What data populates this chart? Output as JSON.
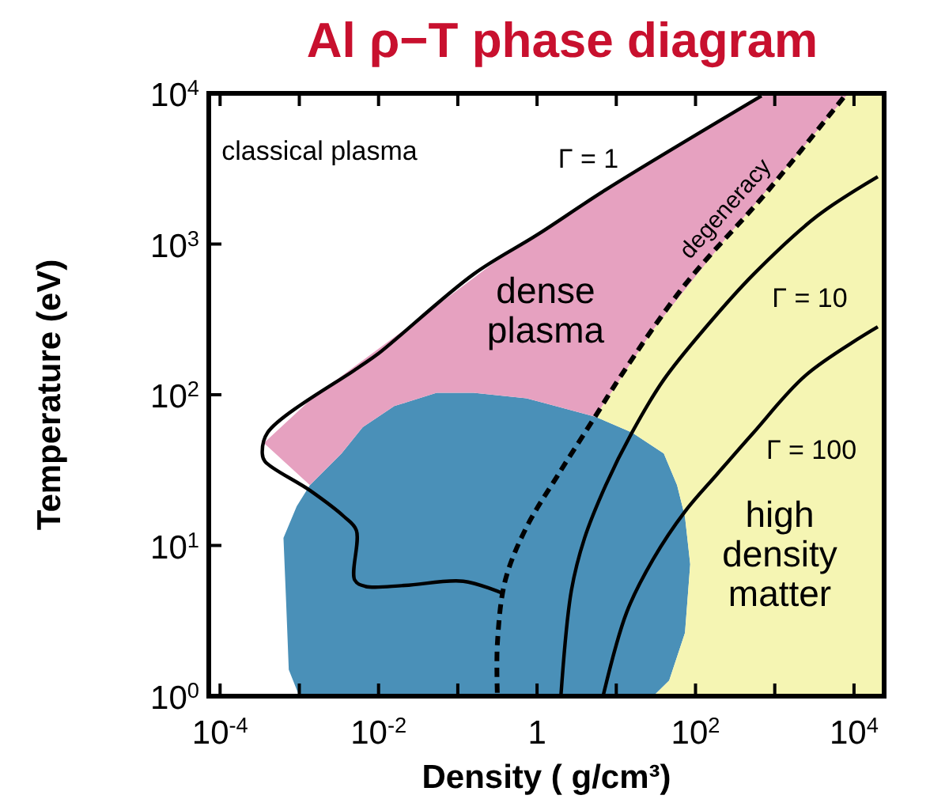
{
  "chart_data": {
    "type": "line",
    "title": "Al ρ−T phase diagram",
    "xlabel": "Density ( g/cm³)",
    "ylabel": "Temperature (eV)",
    "log": "xy",
    "xlim": [
      7.2e-05,
      24000
    ],
    "ylim": [
      1,
      10000
    ],
    "xticks": [
      {
        "value": 0.0001,
        "label": "10$^{-4}$"
      },
      {
        "value": 0.001,
        "label": null
      },
      {
        "value": 0.01,
        "label": "10$^{-2}$"
      },
      {
        "value": 0.1,
        "label": null
      },
      {
        "value": 1,
        "label": "1"
      },
      {
        "value": 10,
        "label": null
      },
      {
        "value": 100,
        "label": "10$^{2}$"
      },
      {
        "value": 1000,
        "label": null
      },
      {
        "value": 10000,
        "label": "10$^{4}$"
      }
    ],
    "yticks": [
      {
        "value": 1,
        "label": "10$^{0}$"
      },
      {
        "value": 10,
        "label": "10$^{1}$"
      },
      {
        "value": 100,
        "label": "10$^{2}$"
      },
      {
        "value": 1000,
        "label": "10$^{3}$"
      },
      {
        "value": 10000,
        "label": "10$^{4}$"
      }
    ],
    "series": [
      {
        "type": "area",
        "color": "#4a90b8",
        "x": [
          0.000681,
          0.000631,
          0.000927,
          0.00136,
          0.00341,
          0.00631,
          0.0158,
          0.0541,
          0.158,
          0.736,
          5.41,
          15.8,
          39.8,
          58.5,
          73.6,
          85.7,
          73.6,
          46.5,
          29.3,
          0.001,
          0.000736
        ],
        "values": [
          4.27,
          11.2,
          18.2,
          25.1,
          40.7,
          61,
          84.1,
          103,
          103,
          94.8,
          71.6,
          56.2,
          40.7,
          25.1,
          15.5,
          7.5,
          2.63,
          1.27,
          1,
          1,
          1.5
        ]
      },
      {
        "type": "area",
        "color": "#f5f5b3",
        "x": [
          8500,
          2330,
          233,
          29.3,
          5.41,
          15.8,
          39.8,
          58.5,
          73.6,
          85.7,
          73.6,
          46.5,
          29.3,
          24000,
          24000
        ],
        "values": [
          10000,
          4430,
          1064,
          271,
          71.6,
          56.2,
          40.7,
          25.1,
          15.5,
          7.5,
          2.63,
          1.27,
          1,
          1,
          10000
        ]
      },
      {
        "type": "area",
        "color": "#e6a1c0",
        "x": [
          800,
          73.6,
          0.398,
          0.0398,
          0.00158,
          0.000357,
          0.00136,
          0.00341,
          0.00631,
          0.0158,
          0.0541,
          0.158,
          0.736,
          5.41,
          29.3,
          233,
          2330,
          8500
        ],
        "values": [
          10000,
          4730,
          857,
          345,
          98.8,
          47.9,
          25.1,
          40.7,
          61,
          84.1,
          103,
          103,
          94.8,
          71.6,
          271,
          1064,
          4430,
          10000
        ]
      },
      {
        "color": "#000000",
        "x": [
          681,
          7.36,
          1.0,
          0.158,
          0.01,
          0.0054,
          0.000398,
          0.000341,
          0.000369,
          0.00136,
          0.00369,
          0.00525,
          0.00501,
          0.00681,
          0.0215,
          0.117,
          0.369
        ],
        "values": [
          9620,
          2290,
          1150,
          631,
          188,
          150,
          56.2,
          40.7,
          36.1,
          23.2,
          15.5,
          12.6,
          5.89,
          5.35,
          5.43,
          5.79,
          4.81
        ]
      },
      {
        "name": "degeneracy",
        "color": "#000000",
        "line_style": "dashed",
        "x": [
          7360,
          736,
          73.6,
          11.7,
          5.41,
          1.85,
          0.736,
          0.398,
          0.316,
          0.316
        ],
        "values": [
          9380,
          2110,
          537,
          136,
          71.6,
          29.5,
          13.2,
          5.89,
          2.24,
          1
        ]
      },
      {
        "color": "#000000",
        "x": [
          19950,
          3410,
          541,
          136,
          39.8,
          15.8,
          7.36,
          3.98,
          2.71,
          2.0
        ],
        "values": [
          2800,
          1530,
          631,
          282,
          126,
          56.2,
          25.1,
          11.2,
          5.01,
          1
        ]
      },
      {
        "color": "#000000",
        "x": [
          19950,
          2510,
          541,
          185,
          73.6,
          29.3,
          13.6,
          6.81
        ],
        "values": [
          282,
          136,
          56.2,
          29.5,
          16.8,
          8.13,
          3.63,
          1
        ]
      }
    ],
    "annotations": [
      "classical plasma",
      "Γ = 1",
      "dense\nplasma",
      "Γ = 10",
      "Γ = 100",
      "high\ndensity\nmatter"
    ],
    "legend": false
  }
}
